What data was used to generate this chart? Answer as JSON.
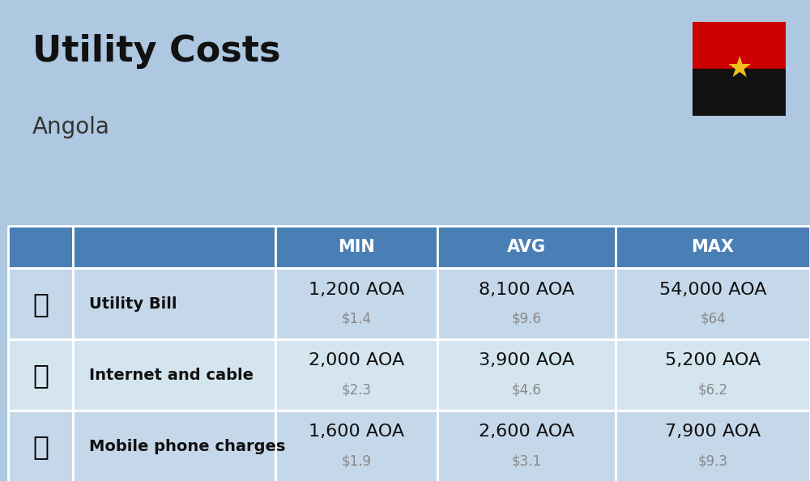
{
  "title": "Utility Costs",
  "subtitle": "Angola",
  "background_color": "#adc8e0",
  "header_color": "#4a7fb5",
  "header_text_color": "#ffffff",
  "row_colors": [
    "#c5d8ea",
    "#d5e5f0"
  ],
  "col_headers": [
    "MIN",
    "AVG",
    "MAX"
  ],
  "rows": [
    {
      "label": "Utility Bill",
      "min_aoa": "1,200 AOA",
      "min_usd": "$1.4",
      "avg_aoa": "8,100 AOA",
      "avg_usd": "$9.6",
      "max_aoa": "54,000 AOA",
      "max_usd": "$64"
    },
    {
      "label": "Internet and cable",
      "min_aoa": "2,000 AOA",
      "min_usd": "$2.3",
      "avg_aoa": "3,900 AOA",
      "avg_usd": "$4.6",
      "max_aoa": "5,200 AOA",
      "max_usd": "$6.2"
    },
    {
      "label": "Mobile phone charges",
      "min_aoa": "1,600 AOA",
      "min_usd": "$1.9",
      "avg_aoa": "2,600 AOA",
      "avg_usd": "$3.1",
      "max_aoa": "7,900 AOA",
      "max_usd": "$9.3"
    }
  ],
  "title_fontsize": 32,
  "subtitle_fontsize": 20,
  "header_fontsize": 15,
  "label_fontsize": 14,
  "value_fontsize": 16,
  "usd_fontsize": 12,
  "flag_red": "#cc0000",
  "flag_black": "#111111",
  "flag_yellow": "#f0c020"
}
